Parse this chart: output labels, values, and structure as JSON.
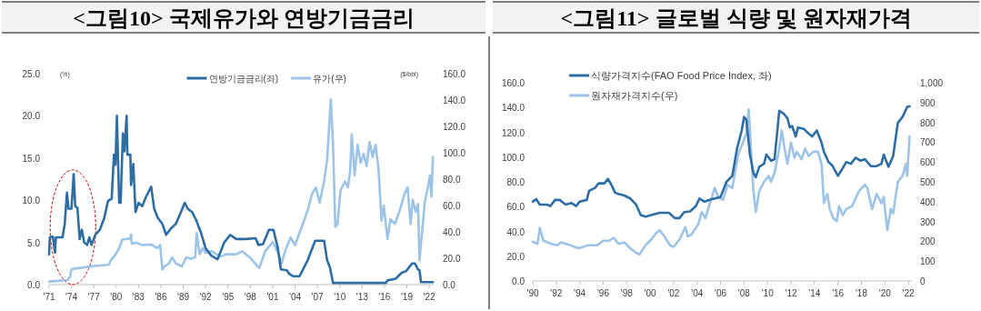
{
  "chart_data": [
    {
      "type": "line",
      "title": "<그림10> 국제유가와 연방기금금리",
      "ylabel": "(%)",
      "y2label": "($/bbl)",
      "legend": "top",
      "xlim": [
        1971,
        2022.6
      ],
      "xticks": [
        {
          "value": 1971,
          "label": "'71"
        },
        {
          "value": 1974,
          "label": "'74"
        },
        {
          "value": 1977,
          "label": "'77"
        },
        {
          "value": 1980,
          "label": "'80"
        },
        {
          "value": 1983,
          "label": "'83"
        },
        {
          "value": 1986,
          "label": "'86"
        },
        {
          "value": 1989,
          "label": "'89"
        },
        {
          "value": 1992,
          "label": "'92"
        },
        {
          "value": 1995,
          "label": "'95"
        },
        {
          "value": 1998,
          "label": "'98"
        },
        {
          "value": 2001,
          "label": "'01"
        },
        {
          "value": 2004,
          "label": "'04"
        },
        {
          "value": 2007,
          "label": "'07"
        },
        {
          "value": 2010,
          "label": "'10"
        },
        {
          "value": 2013,
          "label": "'13"
        },
        {
          "value": 2016,
          "label": "'16"
        },
        {
          "value": 2019,
          "label": "'19"
        },
        {
          "value": 2022,
          "label": "'22"
        }
      ],
      "ylim": [
        0,
        25
      ],
      "yticks": [
        {
          "value": 0,
          "label": "0.0"
        },
        {
          "value": 5,
          "label": "5.0"
        },
        {
          "value": 10,
          "label": "10.0"
        },
        {
          "value": 15,
          "label": "15.0"
        },
        {
          "value": 20,
          "label": "20.0"
        },
        {
          "value": 25,
          "label": "25.0"
        }
      ],
      "y2lim": [
        0,
        160
      ],
      "y2ticks": [
        {
          "value": 0,
          "label": "0.0"
        },
        {
          "value": 20,
          "label": "20.0"
        },
        {
          "value": 40,
          "label": "40.0"
        },
        {
          "value": 60,
          "label": "60.0"
        },
        {
          "value": 80,
          "label": "80.0"
        },
        {
          "value": 100,
          "label": "100.0"
        },
        {
          "value": 120,
          "label": "120.0"
        },
        {
          "value": 140,
          "label": "140.0"
        },
        {
          "value": 160,
          "label": "160.0"
        }
      ],
      "series": [
        {
          "name": "연방기금금리(좌)",
          "color": "#2e6da4",
          "x": [
            1971.0,
            1971.1,
            1971.5,
            1971.8,
            1971.9,
            1972.8,
            1973.1,
            1973.4,
            1973.6,
            1974.0,
            1974.3,
            1974.5,
            1974.8,
            1975.1,
            1975.4,
            1975.7,
            1976.1,
            1976.4,
            1976.7,
            1977.2,
            1977.8,
            1978.4,
            1978.9,
            1979.4,
            1979.7,
            1979.9,
            1980.1,
            1980.4,
            1980.6,
            1980.9,
            1981.1,
            1981.4,
            1981.5,
            1981.9,
            1982.0,
            1982.3,
            1982.6,
            1983.0,
            1983.5,
            1984.0,
            1984.7,
            1985.1,
            1985.6,
            1986.2,
            1986.7,
            1987.3,
            1988.0,
            1988.6,
            1989.2,
            1989.6,
            1990.2,
            1990.8,
            1991.4,
            1992.0,
            1992.8,
            1993.6,
            1994.5,
            1995.3,
            1996.1,
            1997.3,
            1998.7,
            1999.1,
            1999.7,
            2000.5,
            2001.1,
            2001.7,
            2002.1,
            2002.9,
            2003.2,
            2003.7,
            2004.6,
            2005.7,
            2006.7,
            2007.9,
            2008.3,
            2008.7,
            2009.1,
            2016.2,
            2016.4,
            2017.5,
            2018.3,
            2018.9,
            2019.7,
            2020.1,
            2020.5,
            2020.7,
            2020.9,
            2022.5
          ],
          "values": [
            3.6,
            5.6,
            5.7,
            3.8,
            5.6,
            5.6,
            7.2,
            10.9,
            9.0,
            9.0,
            13.1,
            9.3,
            9.1,
            5.4,
            6.5,
            5.0,
            4.7,
            5.6,
            4.7,
            5.9,
            6.5,
            7.9,
            9.9,
            10.2,
            15.4,
            14.2,
            20.0,
            9.7,
            9.7,
            17.9,
            15.8,
            20.0,
            15.4,
            15.4,
            11.8,
            14.3,
            8.6,
            9.7,
            9.3,
            10.4,
            11.6,
            9.0,
            7.9,
            7.2,
            5.9,
            6.6,
            7.2,
            8.4,
            9.7,
            9.0,
            8.6,
            7.5,
            6.1,
            4.3,
            3.4,
            3.0,
            5.0,
            5.9,
            5.4,
            5.4,
            5.5,
            4.7,
            4.8,
            6.5,
            6.5,
            4.3,
            1.8,
            1.7,
            1.3,
            1.0,
            1.0,
            2.9,
            5.2,
            5.2,
            2.9,
            2.0,
            0.2,
            0.2,
            0.5,
            0.7,
            1.4,
            1.6,
            2.5,
            2.5,
            1.8,
            1.7,
            0.3,
            0.3
          ]
        },
        {
          "name": "유가(우)",
          "color": "#9dc3e6",
          "axis": "y2",
          "x": [
            1971.0,
            1973.5,
            1973.8,
            1974.0,
            1974.3,
            1976.6,
            1977.4,
            1979.0,
            1979.4,
            1979.8,
            1980.4,
            1980.8,
            1981.9,
            1982.0,
            1982.1,
            1982.7,
            1983.5,
            1984.7,
            1985.5,
            1985.9,
            1986.2,
            1986.5,
            1987.1,
            1987.5,
            1988.0,
            1988.8,
            1989.4,
            1990.0,
            1990.6,
            1990.8,
            1991.2,
            1991.6,
            1992.0,
            1992.8,
            1994.0,
            1994.7,
            1996.1,
            1996.9,
            1997.9,
            1999.2,
            2000.0,
            2001.0,
            2001.8,
            2002.2,
            2002.8,
            2003.4,
            2004.0,
            2004.9,
            2005.7,
            2006.3,
            2006.8,
            2007.3,
            2007.9,
            2008.3,
            2008.8,
            2009.1,
            2009.4,
            2009.7,
            2010.1,
            2010.7,
            2011.1,
            2011.4,
            2011.6,
            2012.0,
            2012.4,
            2012.8,
            2013.2,
            2013.6,
            2014.0,
            2014.4,
            2014.8,
            2015.2,
            2015.6,
            2015.9,
            2016.4,
            2016.8,
            2017.4,
            2018.0,
            2018.7,
            2019.1,
            2019.5,
            2019.8,
            2020.2,
            2020.5,
            2020.7,
            2021.0,
            2021.4,
            2021.9,
            2022.1,
            2022.3,
            2022.5
          ],
          "values": [
            2.3,
            3.5,
            5.8,
            11.5,
            12.0,
            13.8,
            14.3,
            15.0,
            19.6,
            21.9,
            27.6,
            34.1,
            35.0,
            38.0,
            31.1,
            31.8,
            30.0,
            30.4,
            27.6,
            30.0,
            11.5,
            13.8,
            16.1,
            20.7,
            16.1,
            13.8,
            20.7,
            19.6,
            20.7,
            39.2,
            23.0,
            27.6,
            24.2,
            25.3,
            21.2,
            23.0,
            23.0,
            25.3,
            20.7,
            12.7,
            25.3,
            32.3,
            23.0,
            16.1,
            27.6,
            35.7,
            30.0,
            43.8,
            56.4,
            69.1,
            73.7,
            62.2,
            78.3,
            94.5,
            140.5,
            106.0,
            43.8,
            46.1,
            71.4,
            78.3,
            73.7,
            86.4,
            114.0,
            82.9,
            106.0,
            92.2,
            99.1,
            89.9,
            108.3,
            96.8,
            106.0,
            87.6,
            48.4,
            59.9,
            34.6,
            49.5,
            46.1,
            55.3,
            69.1,
            73.7,
            46.1,
            64.5,
            55.3,
            61.1,
            18.4,
            36.9,
            62.2,
            76.0,
            82.9,
            66.8,
            96.8
          ]
        }
      ]
    },
    {
      "type": "line",
      "title": "<그림11> 글로벌 식량 및 원자재가격",
      "legend": "top left",
      "xlim": [
        1990,
        2022.3
      ],
      "xticks": [
        {
          "value": 1990,
          "label": "'90"
        },
        {
          "value": 1992,
          "label": "'92"
        },
        {
          "value": 1994,
          "label": "'94"
        },
        {
          "value": 1996,
          "label": "'96"
        },
        {
          "value": 1998,
          "label": "'98"
        },
        {
          "value": 2000,
          "label": "'00"
        },
        {
          "value": 2002,
          "label": "'02"
        },
        {
          "value": 2004,
          "label": "'04"
        },
        {
          "value": 2006,
          "label": "'06"
        },
        {
          "value": 2008,
          "label": "'08"
        },
        {
          "value": 2010,
          "label": "'10"
        },
        {
          "value": 2012,
          "label": "'12"
        },
        {
          "value": 2014,
          "label": "'14"
        },
        {
          "value": 2016,
          "label": "'16"
        },
        {
          "value": 2018,
          "label": "'18"
        },
        {
          "value": 2020,
          "label": "'20"
        },
        {
          "value": 2022,
          "label": "'22"
        }
      ],
      "ylim": [
        0,
        160
      ],
      "yticks": [
        {
          "value": 0,
          "label": "0.0"
        },
        {
          "value": 20,
          "label": "20.0"
        },
        {
          "value": 40,
          "label": "40.0"
        },
        {
          "value": 60,
          "label": "60.0"
        },
        {
          "value": 80,
          "label": "80.0"
        },
        {
          "value": 100,
          "label": "100.0"
        },
        {
          "value": 120,
          "label": "120.0"
        },
        {
          "value": 140,
          "label": "140.0"
        },
        {
          "value": 160,
          "label": "160.0"
        }
      ],
      "y2lim": [
        0,
        1000
      ],
      "y2ticks": [
        0,
        100,
        200,
        300,
        400,
        500,
        600,
        700,
        800,
        900,
        {
          "value": 1000,
          "label": "1,000"
        }
      ],
      "series": [
        {
          "name": "식량가격지수(FAO Food Price Index, 좌)",
          "color": "#2e6da4",
          "x": [
            1990.0,
            1990.3,
            1990.6,
            1991.2,
            1991.5,
            1991.9,
            1992.3,
            1992.8,
            1993.3,
            1993.7,
            1994.0,
            1994.6,
            1994.8,
            1995.3,
            1995.6,
            1996.1,
            1996.4,
            1996.7,
            1997.0,
            1997.3,
            1997.8,
            1998.3,
            1998.8,
            1999.2,
            1999.6,
            2000.1,
            2000.8,
            2001.6,
            2002.1,
            2002.5,
            2002.9,
            2003.4,
            2003.9,
            2004.2,
            2004.6,
            2005.2,
            2006.0,
            2006.5,
            2007.0,
            2007.4,
            2007.8,
            2008.0,
            2008.2,
            2008.5,
            2008.8,
            2009.0,
            2009.3,
            2009.7,
            2009.9,
            2010.3,
            2010.6,
            2011.0,
            2011.4,
            2011.7,
            2011.9,
            2012.1,
            2012.4,
            2012.6,
            2013.1,
            2013.5,
            2013.8,
            2014.2,
            2014.6,
            2014.8,
            2015.2,
            2015.5,
            2016.0,
            2016.4,
            2016.7,
            2017.1,
            2017.5,
            2017.9,
            2018.3,
            2018.8,
            2019.3,
            2019.7,
            2019.9,
            2020.3,
            2020.7,
            2021.1,
            2021.5,
            2021.9,
            2022.1
          ],
          "values": [
            64.1,
            65.9,
            61.7,
            61.7,
            60.5,
            65.4,
            65.4,
            61.7,
            62.9,
            60.5,
            64.1,
            65.4,
            72.7,
            75.1,
            78.8,
            78.8,
            82.4,
            77.6,
            71.5,
            70.2,
            69.0,
            66.6,
            61.7,
            53.2,
            52.0,
            53.2,
            55.1,
            55.1,
            50.7,
            50.7,
            55.6,
            56.1,
            60.5,
            66.6,
            64.1,
            65.9,
            67.8,
            80.0,
            84.9,
            106.8,
            121.5,
            132.4,
            130.0,
            102.0,
            87.3,
            83.7,
            92.2,
            94.6,
            102.0,
            97.1,
            98.3,
            137.3,
            134.9,
            131.2,
            123.9,
            125.1,
            116.6,
            123.9,
            122.7,
            119.0,
            116.6,
            121.5,
            111.7,
            104.4,
            95.9,
            93.4,
            84.9,
            91.0,
            95.9,
            94.6,
            99.5,
            97.1,
            98.3,
            92.7,
            92.7,
            94.6,
            102.0,
            92.2,
            100.7,
            127.6,
            132.4,
            140.5,
            141.0
          ]
        },
        {
          "name": "원자재가격지수(우)",
          "color": "#9dc3e6",
          "axis": "y2",
          "x": [
            1990.0,
            1990.4,
            1990.6,
            1990.9,
            1991.6,
            1992.1,
            1992.4,
            1993.2,
            1993.9,
            1994.7,
            1995.5,
            1996.0,
            1996.5,
            1996.9,
            1997.3,
            1997.8,
            1998.3,
            1998.8,
            1999.1,
            1999.6,
            2000.1,
            2000.5,
            2000.8,
            2001.2,
            2001.7,
            2002.0,
            2002.5,
            2003.0,
            2003.2,
            2003.5,
            2004.1,
            2004.4,
            2004.7,
            2005.1,
            2005.5,
            2005.8,
            2006.2,
            2006.6,
            2007.0,
            2007.5,
            2007.9,
            2008.2,
            2008.4,
            2008.5,
            2008.8,
            2009.0,
            2009.3,
            2009.7,
            2010.1,
            2010.3,
            2010.6,
            2011.0,
            2011.2,
            2011.5,
            2011.7,
            2012.0,
            2012.3,
            2012.5,
            2012.9,
            2013.2,
            2013.5,
            2013.9,
            2014.3,
            2014.6,
            2014.8,
            2015.1,
            2015.3,
            2015.6,
            2015.9,
            2016.1,
            2016.4,
            2016.7,
            2017.2,
            2017.8,
            2018.3,
            2018.5,
            2018.9,
            2019.3,
            2019.7,
            2019.9,
            2020.2,
            2020.5,
            2020.7,
            2021.1,
            2021.5,
            2021.8,
            2021.9,
            2022.1
          ],
          "values": [
            198,
            187,
            268,
            203,
            187,
            180,
            195,
            180,
            165,
            180,
            180,
            203,
            203,
            218,
            187,
            195,
            165,
            142,
            134,
            180,
            210,
            241,
            256,
            226,
            180,
            172,
            210,
            271,
            226,
            233,
            287,
            348,
            317,
            393,
            470,
            424,
            409,
            485,
            470,
            637,
            698,
            744,
            866,
            759,
            454,
            348,
            454,
            500,
            530,
            500,
            546,
            668,
            759,
            652,
            591,
            698,
            622,
            652,
            614,
            668,
            630,
            652,
            652,
            591,
            393,
            439,
            363,
            317,
            302,
            378,
            332,
            363,
            378,
            454,
            485,
            470,
            363,
            439,
            393,
            424,
            256,
            363,
            340,
            500,
            530,
            591,
            530,
            729
          ]
        }
      ]
    }
  ]
}
